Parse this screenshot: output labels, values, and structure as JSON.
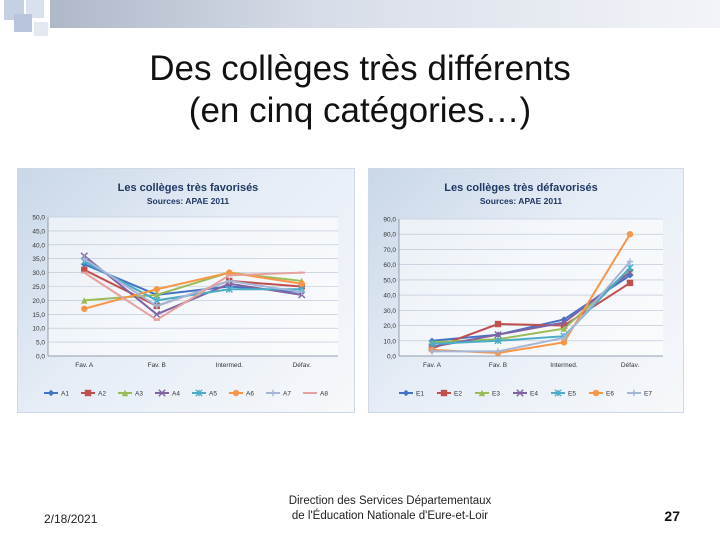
{
  "slide": {
    "title_line1": "Des collèges très différents",
    "title_line2": "(en cinq catégories…)",
    "footer_date": "2/18/2021",
    "footer_org_line1": "Direction des Services Départementaux",
    "footer_org_line2": "de l'Éducation Nationale d'Eure-et-Loir",
    "page_number": "27"
  },
  "chart_data": [
    {
      "type": "line",
      "title": "Les collèges très favorisés",
      "subtitle": "Sources: APAE 2011",
      "categories": [
        "Fav. A",
        "Fav. B",
        "Intermed.",
        "Défav."
      ],
      "yticks": [
        "0,0",
        "5,0",
        "10,0",
        "15,0",
        "20,0",
        "25,0",
        "30,0",
        "35,0",
        "40,0",
        "45,0",
        "50,0"
      ],
      "ylim": [
        0,
        50
      ],
      "legend_position": "bottom",
      "series": [
        {
          "name": "A1",
          "color": "#4472c4",
          "marker": "diamond",
          "values": [
            33,
            22,
            25,
            23
          ]
        },
        {
          "name": "A2",
          "color": "#c0504d",
          "marker": "square",
          "values": [
            31,
            18,
            27,
            25
          ]
        },
        {
          "name": "A3",
          "color": "#9bbb59",
          "marker": "triangle",
          "values": [
            20,
            22,
            30,
            27
          ]
        },
        {
          "name": "A4",
          "color": "#8064a2",
          "marker": "x",
          "values": [
            36,
            15,
            26,
            22
          ]
        },
        {
          "name": "A5",
          "color": "#4bacc6",
          "marker": "star",
          "values": [
            34,
            20,
            24,
            24
          ]
        },
        {
          "name": "A6",
          "color": "#f79646",
          "marker": "circle",
          "values": [
            17,
            24,
            30,
            26
          ]
        },
        {
          "name": "A7",
          "color": "#a5b5d6",
          "marker": "plus",
          "values": [
            35,
            18,
            27,
            23
          ]
        },
        {
          "name": "A8",
          "color": "#e6a19e",
          "marker": "dash",
          "values": [
            30,
            13,
            29,
            30
          ]
        }
      ]
    },
    {
      "type": "line",
      "title": "Les collèges très défavorisés",
      "subtitle": "Sources: APAE 2011",
      "categories": [
        "Fav. A",
        "Fav. B",
        "Intermed.",
        "Défav."
      ],
      "yticks": [
        "0,0",
        "10,0",
        "20,0",
        "30,0",
        "40,0",
        "50,0",
        "60,0",
        "70,0",
        "80,0",
        "90,0"
      ],
      "ylim": [
        0,
        90
      ],
      "legend_position": "bottom",
      "series": [
        {
          "name": "E1",
          "color": "#4472c4",
          "marker": "diamond",
          "values": [
            10,
            14,
            24,
            53
          ]
        },
        {
          "name": "E2",
          "color": "#c0504d",
          "marker": "square",
          "values": [
            5,
            21,
            20,
            48
          ]
        },
        {
          "name": "E3",
          "color": "#9bbb59",
          "marker": "triangle",
          "values": [
            9,
            11,
            18,
            57
          ]
        },
        {
          "name": "E4",
          "color": "#8064a2",
          "marker": "x",
          "values": [
            6,
            14,
            22,
            55
          ]
        },
        {
          "name": "E5",
          "color": "#4bacc6",
          "marker": "star",
          "values": [
            8,
            10,
            13,
            58
          ]
        },
        {
          "name": "E6",
          "color": "#f79646",
          "marker": "circle",
          "values": [
            4,
            2,
            9,
            80
          ]
        },
        {
          "name": "E7",
          "color": "#a5b5d6",
          "marker": "plus",
          "values": [
            3,
            3,
            12,
            62
          ]
        }
      ]
    }
  ]
}
